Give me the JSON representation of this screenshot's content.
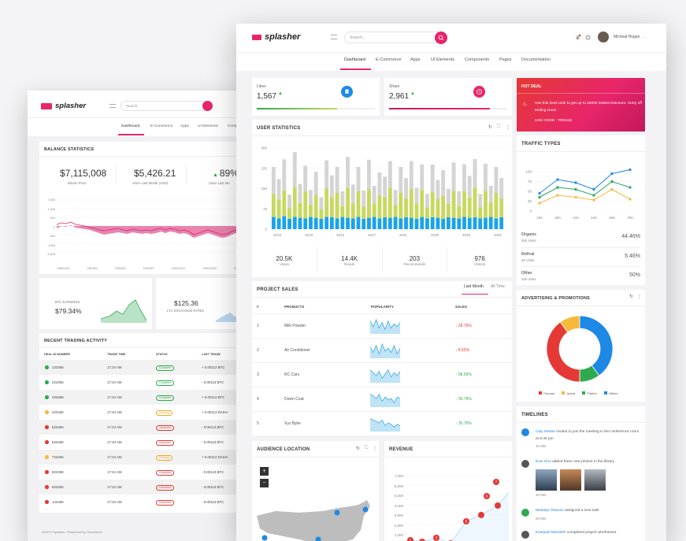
{
  "app": {
    "brand": "splasher",
    "search_placeholder": "Search..."
  },
  "nav": {
    "tabs": [
      "Dashboard",
      "E-Commerce",
      "Apps",
      "UI Elements",
      "Components",
      "Pages",
      "Documentation"
    ],
    "back_tabs": [
      "Dashboard",
      "E-Commerce",
      "Apps",
      "UI Elements",
      "Comp"
    ]
  },
  "user": {
    "name": "Micheal Hogan"
  },
  "stats": {
    "likes": {
      "label": "Likes",
      "value": "1,567",
      "progress": 0.68
    },
    "share": {
      "label": "Share",
      "value": "2,961",
      "progress": 0.85
    }
  },
  "hot_deal": {
    "title": "HOT DEAL",
    "text": "Use this deal code to get up to 15000 instant Discount. Hurry off ending soon!",
    "code": "USE CODE : TRES15"
  },
  "user_statistics": {
    "title": "USER STATISTICS",
    "summary": [
      {
        "value": "20.5K",
        "label": "Views"
      },
      {
        "value": "14.4K",
        "label": "Reads"
      },
      {
        "value": "203",
        "label": "Recommends"
      },
      {
        "value": "976",
        "label": "Visitors"
      }
    ]
  },
  "chart_data": [
    {
      "type": "bar",
      "title": "USER STATISTICS",
      "stacked": true,
      "categories": [
        "2015",
        "2015",
        "2016",
        "2016",
        "2017",
        "2017",
        "2018",
        "2018",
        "2019",
        "2019",
        "2020",
        "2020",
        "2021",
        "2021",
        "2022",
        "2022",
        "2023",
        "2023",
        "2024",
        "2024",
        "2025",
        "2025",
        "2026",
        "2026",
        "2027",
        "2027",
        "2028",
        "2028",
        "2029",
        "2029",
        "2030",
        "2030",
        "2031",
        "2031",
        "2032",
        "2032",
        "2033",
        "2033",
        "2034",
        "2034",
        "2035",
        "2035",
        "2036",
        "2036"
      ],
      "tick_labels": [
        "2015",
        "2019",
        "2023",
        "2027",
        "2031",
        "2035",
        "2039",
        "2042"
      ],
      "y_ticks": [
        0,
        75,
        150,
        225,
        300
      ],
      "ylim": [
        0,
        300
      ],
      "series": [
        {
          "color": "#1ba3e8",
          "values": [
            45,
            40,
            48,
            38,
            45,
            42,
            40,
            45,
            42,
            38,
            45,
            44,
            40,
            45,
            42,
            40,
            45,
            38,
            42,
            45,
            40,
            44,
            42,
            45,
            40,
            44,
            42,
            38,
            45,
            40,
            44,
            42,
            38,
            44,
            42,
            40,
            45,
            42,
            44,
            40,
            42,
            45,
            40,
            44
          ]
        },
        {
          "color": "#c8d85f",
          "values": [
            85,
            70,
            95,
            40,
            110,
            55,
            100,
            45,
            85,
            35,
            105,
            75,
            95,
            40,
            110,
            55,
            95,
            45,
            105,
            50,
            85,
            75,
            110,
            45,
            95,
            70,
            105,
            55,
            100,
            40,
            95,
            70,
            85,
            50,
            100,
            45,
            95,
            75,
            110,
            40,
            100,
            55,
            95,
            70
          ]
        },
        {
          "color": "#d4d4d4",
          "values": [
            100,
            75,
            115,
            50,
            130,
            70,
            95,
            55,
            85,
            45,
            105,
            80,
            95,
            55,
            115,
            70,
            90,
            60,
            110,
            65,
            85,
            75,
            100,
            55,
            95,
            75,
            105,
            60,
            95,
            50,
            100,
            70,
            95,
            55,
            105,
            55,
            100,
            80,
            105,
            50,
            100,
            60,
            95,
            75
          ]
        }
      ]
    },
    {
      "type": "line",
      "title": "TRAFFIC TYPES",
      "x": [
        165,
        290,
        415,
        540,
        665,
        790
      ],
      "x_tick_labels": [
        "165",
        "290",
        "415",
        "540",
        "665",
        "790"
      ],
      "y_ticks": [
        0,
        25,
        50,
        75,
        100
      ],
      "series": [
        {
          "color": "#1e88e5",
          "values": [
            45,
            80,
            72,
            55,
            95,
            105
          ]
        },
        {
          "color": "#26a65b",
          "values": [
            35,
            60,
            55,
            40,
            75,
            60
          ]
        },
        {
          "color": "#f6b93b",
          "values": [
            20,
            40,
            35,
            28,
            55,
            30
          ]
        }
      ]
    },
    {
      "type": "pie",
      "title": "ADVERTISING & PROMOTIONS",
      "labels": [
        "Chrome",
        "Opera",
        "Firefox",
        "Others"
      ],
      "values": [
        40,
        10,
        10,
        40
      ],
      "colors": [
        "#e53935",
        "#f6b93b",
        "#2eaa4f",
        "#1e88e5"
      ]
    }
  ],
  "traffic": {
    "title": "TRAFFIC TYPES",
    "items": [
      {
        "name": "Organic",
        "sub": "356 Visits",
        "pct": "44.46%"
      },
      {
        "name": "Refrral",
        "sub": "36 Visits",
        "pct": "5.46%"
      },
      {
        "name": "Other",
        "sub": "245 Visits",
        "pct": "50%"
      }
    ]
  },
  "ads": {
    "title": "ADVERTISING & PROMOTIONS"
  },
  "project_sales": {
    "title": "PROJECT SALES",
    "tabs": [
      "Last Month",
      "All Time"
    ],
    "columns": [
      "#",
      "PRODUCTS",
      "POPULARITY",
      "SALES"
    ],
    "rows": [
      {
        "n": "1",
        "product": "Milk Powder",
        "sales": "28.76%",
        "up": false
      },
      {
        "n": "2",
        "product": "Air Conditioner",
        "sales": "8.55%",
        "up": false
      },
      {
        "n": "3",
        "product": "RC Cars",
        "sales": "58.56%",
        "up": true
      },
      {
        "n": "4",
        "product": "Down Coat",
        "sales": "35.76%",
        "up": true
      },
      {
        "n": "5",
        "product": "Xyz Byke",
        "sales": "35.76%",
        "up": true
      }
    ]
  },
  "timelines": {
    "title": "TIMELINES",
    "items": [
      {
        "name": "Clay Masse",
        "text": "invited to join the meeting in the conference room at 9.45 pm",
        "time": "10 Min",
        "color": "#1e88e5"
      },
      {
        "name": "Evie Ono",
        "text": "added three new photos in the library",
        "time": "20 Min",
        "color": "#555"
      },
      {
        "name": "Madalyn Rascon",
        "text": "assigned a new task",
        "time": "20 Min",
        "color": "#2eaa4f"
      },
      {
        "name": "Ezequiel Merideth",
        "text": "completed project wireframes",
        "time": "",
        "color": "#555"
      }
    ]
  },
  "audience": {
    "title": "AUDIENCE LOCATION"
  },
  "revenue": {
    "title": "REVENUE",
    "y_ticks": [
      "7,000",
      "6,000",
      "5,000",
      "4,000",
      "3,000",
      "2,000",
      "1,000"
    ],
    "markers": [
      "1",
      "2",
      "3",
      "4",
      "5",
      "6",
      "7"
    ]
  },
  "balance": {
    "title": "BALANCE STATISTICS",
    "items": [
      {
        "value": "$7,115,008",
        "label": "Bitcoin Price"
      },
      {
        "value": "$5,426.21",
        "label": "Since Last Month (USD)"
      },
      {
        "value": "89%",
        "label": "Since Last Mo"
      }
    ],
    "y_ticks": [
      "1,500",
      "1,000",
      "500",
      "0",
      "-500",
      "-1000",
      "-1,500"
    ],
    "x_ticks": [
      "1986/10/8",
      "1987/8/4",
      "1990/8/2",
      "1992/6/2",
      "1993/11/21",
      "1995/10/20",
      "1997/8/..."
    ]
  },
  "btc": {
    "label": "BTC EARNINGS",
    "value": "$79.34%"
  },
  "ltc": {
    "value": "$125.36",
    "label": "LTC EXCHANGE RATES"
  },
  "trading": {
    "title": "RECENT TRADING ACTIVITY",
    "columns": [
      "DEAL ID NUMBER",
      "TRADE TIME",
      "STATUS",
      "LAST TRADE"
    ],
    "rows": [
      {
        "id": "123456",
        "time": "17:24 AM",
        "status": "Complete",
        "trade": "0.00113 BTC",
        "dot": "#2eaa4f",
        "sign": "+"
      },
      {
        "id": "223456",
        "time": "17:24 AM",
        "status": "Complete",
        "trade": "0.00113 BTC",
        "dot": "#2eaa4f",
        "sign": "-"
      },
      {
        "id": "323456",
        "time": "17:24 AM",
        "status": "Complete",
        "trade": "0.00113 BTC",
        "dot": "#2eaa4f",
        "sign": "+"
      },
      {
        "id": "423456",
        "time": "17:24 AM",
        "status": "Pending",
        "trade": "0.00113 DASH",
        "dot": "#f6b93b",
        "sign": "+"
      },
      {
        "id": "523456",
        "time": "17:24 AM",
        "status": "Canceled",
        "trade": "0.00113 BTC",
        "dot": "#e53935",
        "sign": "-"
      },
      {
        "id": "623456",
        "time": "17:24 AM",
        "status": "Canceled",
        "trade": "0.00113 BTC",
        "dot": "#e53935",
        "sign": "-"
      },
      {
        "id": "723456",
        "time": "17:24 AM",
        "status": "Pending",
        "trade": "0.00113 DASH",
        "dot": "#f6b93b",
        "sign": "+"
      },
      {
        "id": "823456",
        "time": "17:24 AM",
        "status": "Canceled",
        "trade": "0.00113 BTC",
        "dot": "#e53935",
        "sign": "-"
      },
      {
        "id": "923456",
        "time": "17:24 AM",
        "status": "Canceled",
        "trade": "0.00113 BTC",
        "dot": "#e53935",
        "sign": "-"
      },
      {
        "id": "123456",
        "time": "17:24 AM",
        "status": "Canceled",
        "trade": "0.00113 BTC",
        "dot": "#e53935",
        "sign": "-"
      }
    ]
  },
  "footer": {
    "text": "2018 © Splasher. Pampered by Hencework"
  },
  "colors": {
    "brand": "#e8256a",
    "accent": "#1e88e5"
  }
}
